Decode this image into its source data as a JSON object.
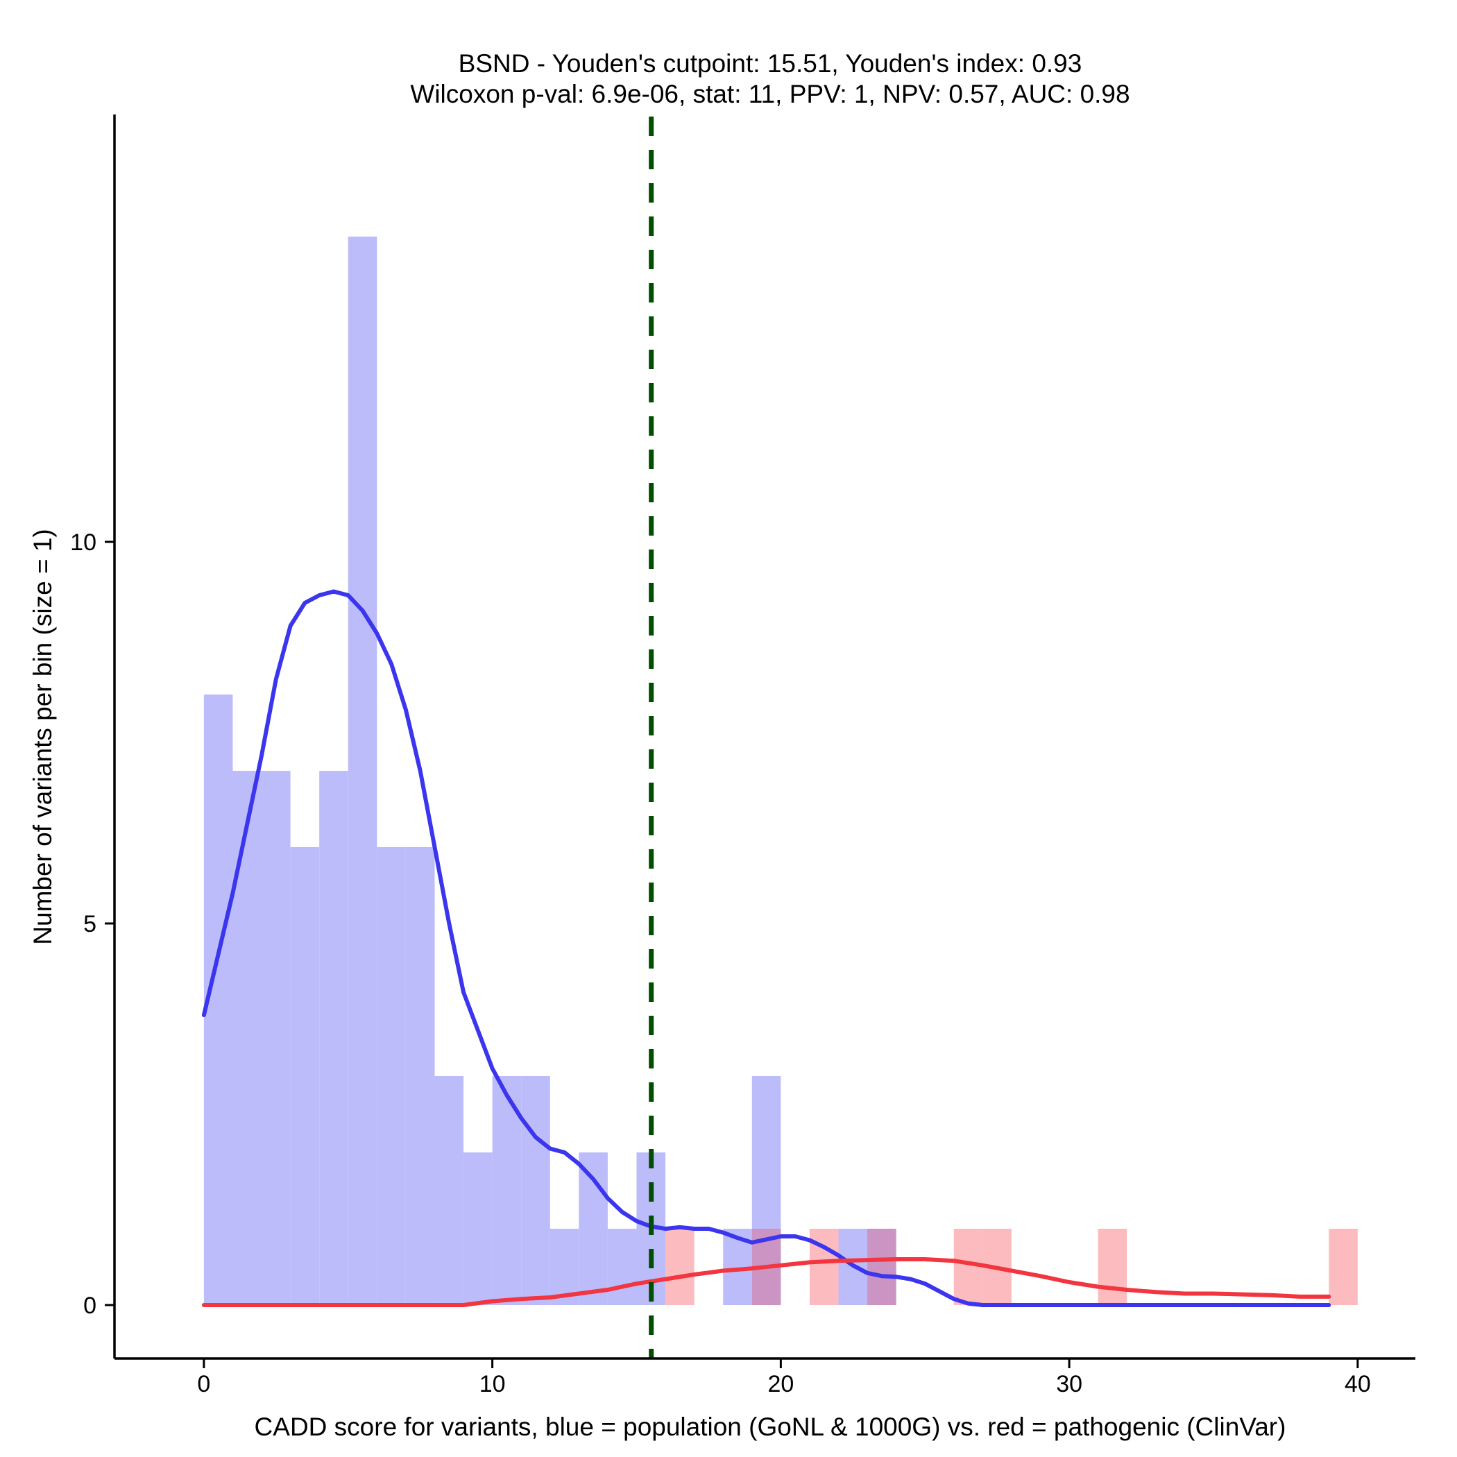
{
  "chart_data": {
    "type": "bar",
    "title": "BSND - Youden's cutpoint: 15.51, Youden's index: 0.93",
    "subtitle": "Wilcoxon p-val: 6.9e-06, stat: 11, PPV: 1, NPV: 0.57, AUC: 0.98",
    "xlabel": "CADD score for variants, blue = population (GoNL & 1000G) vs. red = pathogenic (ClinVar)",
    "ylabel": "Number of variants per bin (size = 1)",
    "xlim": [
      -3.1,
      42.0
    ],
    "ylim": [
      -0.7,
      15.6
    ],
    "xticks": [
      0,
      10,
      20,
      30,
      40
    ],
    "yticks": [
      0,
      5,
      10
    ],
    "grid": false,
    "legend": "none",
    "bin_width": 1,
    "cutpoint": 15.51,
    "colors": {
      "population_bar": "#bcbcfa",
      "pathogenic_bar": "#fcbcbf",
      "overlap_bar": "#cc94c2",
      "population_curve": "#3b35ee",
      "pathogenic_curve": "#f2353f",
      "cutpoint_line": "#004f00"
    },
    "series": [
      {
        "role": "population",
        "bins": [
          [
            0,
            8
          ],
          [
            1,
            7
          ],
          [
            2,
            7
          ],
          [
            3,
            6
          ],
          [
            4,
            7
          ],
          [
            5,
            14
          ],
          [
            6,
            6
          ],
          [
            7,
            6
          ],
          [
            8,
            3
          ],
          [
            9,
            2
          ],
          [
            10,
            3
          ],
          [
            11,
            3
          ],
          [
            12,
            1
          ],
          [
            13,
            2
          ],
          [
            14,
            1
          ],
          [
            15,
            2
          ],
          [
            18,
            1
          ],
          [
            19,
            3
          ],
          [
            22,
            1
          ],
          [
            23,
            1
          ]
        ],
        "density_curve": [
          [
            0,
            3.8
          ],
          [
            0.5,
            4.6
          ],
          [
            1,
            5.4
          ],
          [
            1.5,
            6.3
          ],
          [
            2,
            7.2
          ],
          [
            2.5,
            8.2
          ],
          [
            3,
            8.9
          ],
          [
            3.5,
            9.2
          ],
          [
            4,
            9.3
          ],
          [
            4.5,
            9.35
          ],
          [
            5,
            9.3
          ],
          [
            5.5,
            9.1
          ],
          [
            6,
            8.8
          ],
          [
            6.5,
            8.4
          ],
          [
            7,
            7.8
          ],
          [
            7.5,
            7.0
          ],
          [
            8,
            6.0
          ],
          [
            8.5,
            5.0
          ],
          [
            9,
            4.1
          ],
          [
            9.5,
            3.6
          ],
          [
            10,
            3.1
          ],
          [
            10.5,
            2.75
          ],
          [
            11,
            2.45
          ],
          [
            11.5,
            2.2
          ],
          [
            12,
            2.05
          ],
          [
            12.5,
            2.0
          ],
          [
            13,
            1.85
          ],
          [
            13.5,
            1.65
          ],
          [
            14,
            1.4
          ],
          [
            14.5,
            1.22
          ],
          [
            15,
            1.1
          ],
          [
            15.5,
            1.03
          ],
          [
            16,
            1.0
          ],
          [
            16.5,
            1.02
          ],
          [
            17,
            1.0
          ],
          [
            17.5,
            1.0
          ],
          [
            18,
            0.95
          ],
          [
            18.5,
            0.88
          ],
          [
            19,
            0.82
          ],
          [
            19.5,
            0.86
          ],
          [
            20,
            0.9
          ],
          [
            20.5,
            0.9
          ],
          [
            21,
            0.85
          ],
          [
            21.5,
            0.76
          ],
          [
            22,
            0.65
          ],
          [
            22.5,
            0.52
          ],
          [
            23,
            0.42
          ],
          [
            23.5,
            0.38
          ],
          [
            24,
            0.37
          ],
          [
            24.5,
            0.34
          ],
          [
            25,
            0.28
          ],
          [
            25.5,
            0.18
          ],
          [
            26,
            0.08
          ],
          [
            26.5,
            0.02
          ],
          [
            27,
            0.0
          ],
          [
            30,
            0.0
          ],
          [
            35,
            0.0
          ],
          [
            39,
            0.0
          ]
        ]
      },
      {
        "role": "pathogenic",
        "bins": [
          [
            16,
            1
          ],
          [
            19,
            1
          ],
          [
            21,
            1
          ],
          [
            23,
            1
          ],
          [
            26,
            1
          ],
          [
            27,
            1
          ],
          [
            31,
            1
          ],
          [
            39,
            1
          ]
        ],
        "density_curve": [
          [
            0,
            0.0
          ],
          [
            3,
            0.0
          ],
          [
            6,
            0.0
          ],
          [
            8.5,
            0.0
          ],
          [
            9,
            0.0
          ],
          [
            10,
            0.05
          ],
          [
            11,
            0.08
          ],
          [
            12,
            0.1
          ],
          [
            13,
            0.15
          ],
          [
            14,
            0.2
          ],
          [
            15,
            0.28
          ],
          [
            16,
            0.34
          ],
          [
            17,
            0.4
          ],
          [
            18,
            0.45
          ],
          [
            19,
            0.48
          ],
          [
            20,
            0.52
          ],
          [
            21,
            0.56
          ],
          [
            22,
            0.58
          ],
          [
            23,
            0.59
          ],
          [
            24,
            0.6
          ],
          [
            25,
            0.6
          ],
          [
            26,
            0.58
          ],
          [
            27,
            0.52
          ],
          [
            28,
            0.45
          ],
          [
            29,
            0.38
          ],
          [
            30,
            0.3
          ],
          [
            31,
            0.24
          ],
          [
            32,
            0.2
          ],
          [
            33,
            0.17
          ],
          [
            34,
            0.15
          ],
          [
            35,
            0.15
          ],
          [
            36,
            0.14
          ],
          [
            37,
            0.13
          ],
          [
            38,
            0.11
          ],
          [
            39,
            0.11
          ]
        ]
      }
    ]
  }
}
